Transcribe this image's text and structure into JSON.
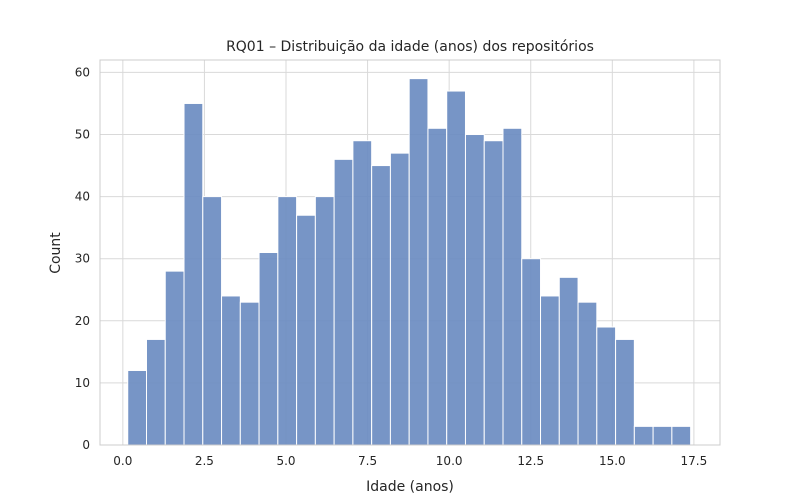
{
  "chart_data": {
    "type": "bar",
    "subtype": "histogram",
    "title": "RQ01 – Distribuição da idade (anos) dos repositórios",
    "xlabel": "Idade (anos)",
    "ylabel": "Count",
    "xlim": [
      -0.7,
      18.3
    ],
    "ylim": [
      0,
      62
    ],
    "xticks": [
      0.0,
      2.5,
      5.0,
      7.5,
      10.0,
      12.5,
      15.0,
      17.5
    ],
    "xtick_labels": [
      "0.0",
      "2.5",
      "5.0",
      "7.5",
      "10.0",
      "12.5",
      "15.0",
      "17.5"
    ],
    "yticks": [
      0,
      10,
      20,
      30,
      40,
      50,
      60
    ],
    "ytick_labels": [
      "0",
      "10",
      "20",
      "30",
      "40",
      "50",
      "60"
    ],
    "grid": true,
    "bar_color": "#6b8cc1",
    "bin_start": 0.15,
    "bin_width": 0.575,
    "values": [
      12,
      17,
      28,
      55,
      40,
      24,
      23,
      31,
      40,
      37,
      40,
      46,
      49,
      45,
      47,
      59,
      51,
      57,
      50,
      49,
      51,
      30,
      24,
      27,
      23,
      19,
      17,
      3,
      3,
      3
    ]
  }
}
